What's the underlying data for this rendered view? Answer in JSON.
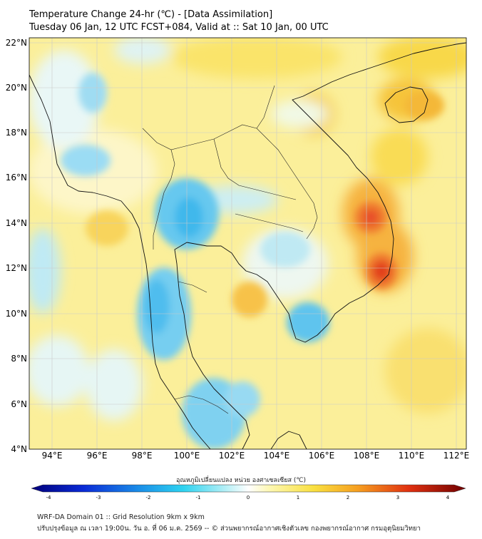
{
  "title": {
    "line1": "Temperature Change 24-hr (℃) - [Data Assimilation]",
    "line2": "Tuesday 06 Jan, 12 UTC FCST+084, Valid at :: Sat 10 Jan, 00 UTC"
  },
  "map": {
    "lat_labels": [
      "22°N",
      "20°N",
      "18°N",
      "16°N",
      "14°N",
      "12°N",
      "10°N",
      "8°N",
      "6°N",
      "4°N"
    ],
    "lon_labels": [
      "94°E",
      "96°E",
      "98°E",
      "100°E",
      "102°E",
      "104°E",
      "106°E",
      "108°E",
      "110°E",
      "112°E"
    ],
    "lat_range": [
      4,
      22
    ],
    "lon_range": [
      93,
      112.5
    ],
    "grid": true
  },
  "colorbar": {
    "title": "อุณหภูมิเปลี่ยนแปลง หน่วย องศาเซลเซียส (℃)",
    "ticks": [
      "-4",
      "-3",
      "-2",
      "-1",
      "0",
      "1",
      "2",
      "3",
      "4"
    ],
    "range": [
      -4,
      4
    ]
  },
  "footer": {
    "line1": "WRF-DA Domain 01 :: Grid Resolution 9km x 9km",
    "line2": "ปรับปรุงข้อมูล ณ เวลา 19:00น. วัน อ. ที่ 06 ม.ค. 2569 -- © ส่วนพยากรณ์อากาศเชิงตัวเลข กองพยากรณ์อากาศ กรมอุตุนิยมวิทยา"
  }
}
